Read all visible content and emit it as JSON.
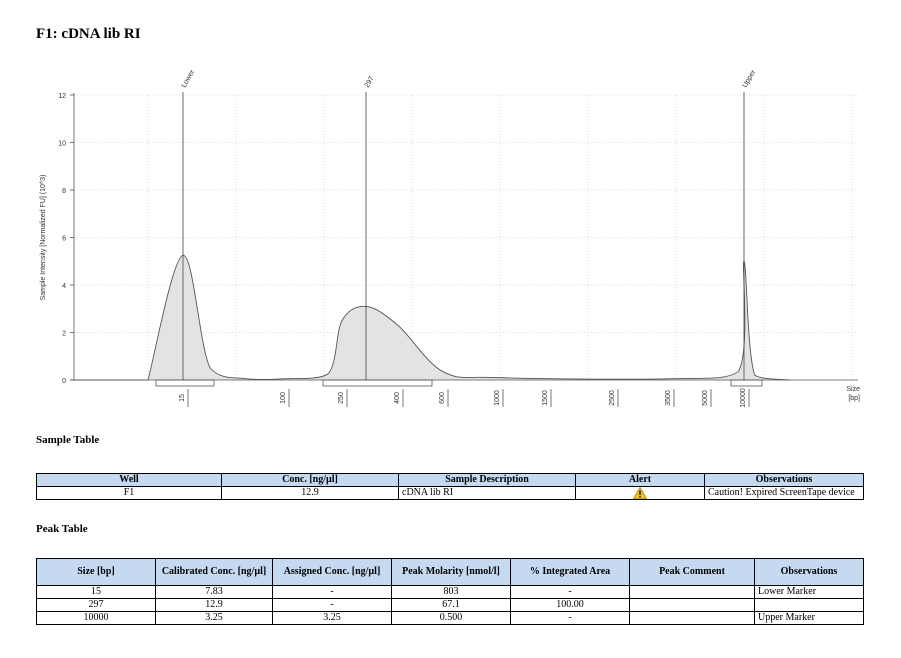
{
  "page_title": "F1: cDNA lib RI",
  "chart_data": {
    "type": "line",
    "ylabel": "Sample Intensity [Normalized FU] (10^3)",
    "xlabel": "Size\n[bp]",
    "ylim": [
      0,
      12
    ],
    "yticks": [
      0,
      2,
      4,
      6,
      8,
      10,
      12
    ],
    "grid": true,
    "xticks": [
      "15",
      "100",
      "250",
      "400",
      "600",
      "1000",
      "1500",
      "2500",
      "3500",
      "5000",
      "10000"
    ],
    "x": [
      "10",
      "15",
      "25",
      "50",
      "100",
      "200",
      "250",
      "297",
      "400",
      "600",
      "1000",
      "3500",
      "9000",
      "10000",
      "11000",
      "15000"
    ],
    "values": [
      0.0,
      5.25,
      0.5,
      0.05,
      0.05,
      0.25,
      2.5,
      3.1,
      2.3,
      0.35,
      0.1,
      0.05,
      0.35,
      5.0,
      0.2,
      0.0
    ],
    "peak_markers": [
      {
        "label": "Lower",
        "size": "15"
      },
      {
        "label": "297",
        "size": "297"
      },
      {
        "label": "Upper",
        "size": "10000"
      }
    ]
  },
  "sample_table": {
    "title": "Sample Table",
    "headers": [
      "Well",
      "Conc. [ng/µl]",
      "Sample Description",
      "Alert",
      "Observations"
    ],
    "rows": [
      {
        "well": "F1",
        "conc": "12.9",
        "description": "cDNA lib RI",
        "alert_icon": "warning-icon",
        "observations": "Caution! Expired ScreenTape device"
      }
    ]
  },
  "peak_table": {
    "title": "Peak Table",
    "headers": [
      "Size [bp]",
      "Calibrated Conc. [ng/µl]",
      "Assigned Conc. [ng/µl]",
      "Peak Molarity [nmol/l]",
      "% Integrated Area",
      "Peak Comment",
      "Observations"
    ],
    "rows": [
      [
        "15",
        "7.83",
        "-",
        "803",
        "-",
        "",
        "Lower Marker"
      ],
      [
        "297",
        "12.9",
        "-",
        "67.1",
        "100.00",
        "",
        ""
      ],
      [
        "10000",
        "3.25",
        "3.25",
        "0.500",
        "-",
        "",
        "Upper Marker"
      ]
    ]
  }
}
